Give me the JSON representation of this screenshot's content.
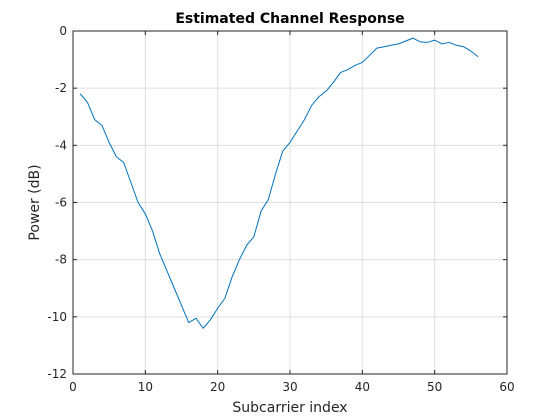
{
  "chart_data": {
    "type": "line",
    "title": "Estimated Channel Response",
    "xlabel": "Subcarrier index",
    "ylabel": "Power (dB)",
    "xlim": [
      0,
      60
    ],
    "ylim": [
      -12,
      0
    ],
    "xticks": [
      0,
      10,
      20,
      30,
      40,
      50,
      60
    ],
    "yticks": [
      0,
      -2,
      -4,
      -6,
      -8,
      -10,
      -12
    ],
    "grid": true,
    "line_color": "#0072BD",
    "series": [
      {
        "x": [
          1,
          2,
          3,
          4,
          5,
          6,
          7,
          8,
          9,
          10,
          11,
          12,
          13,
          14,
          15,
          16,
          17,
          18,
          19,
          20,
          21,
          22,
          23,
          24,
          25,
          26,
          27,
          28,
          29,
          30,
          31,
          32,
          33,
          34,
          35,
          36,
          37,
          38,
          39,
          40,
          41,
          42,
          43,
          44,
          45,
          46,
          47,
          48,
          49,
          50,
          51,
          52,
          53,
          54,
          55,
          56
        ],
        "values": [
          -2.2,
          -2.5,
          -3.1,
          -3.3,
          -3.9,
          -4.4,
          -4.6,
          -5.3,
          -6.0,
          -6.4,
          -7.0,
          -7.8,
          -8.4,
          -9.0,
          -9.6,
          -10.2,
          -10.05,
          -10.4,
          -10.1,
          -9.7,
          -9.35,
          -8.6,
          -8.0,
          -7.5,
          -7.2,
          -6.3,
          -5.9,
          -5.0,
          -4.2,
          -3.9,
          -3.5,
          -3.1,
          -2.6,
          -2.3,
          -2.1,
          -1.8,
          -1.45,
          -1.35,
          -1.2,
          -1.1,
          -0.85,
          -0.6,
          -0.55,
          -0.5,
          -0.45,
          -0.35,
          -0.25,
          -0.38,
          -0.4,
          -0.32,
          -0.45,
          -0.4,
          -0.5,
          -0.55,
          -0.7,
          -0.9
        ]
      }
    ]
  }
}
